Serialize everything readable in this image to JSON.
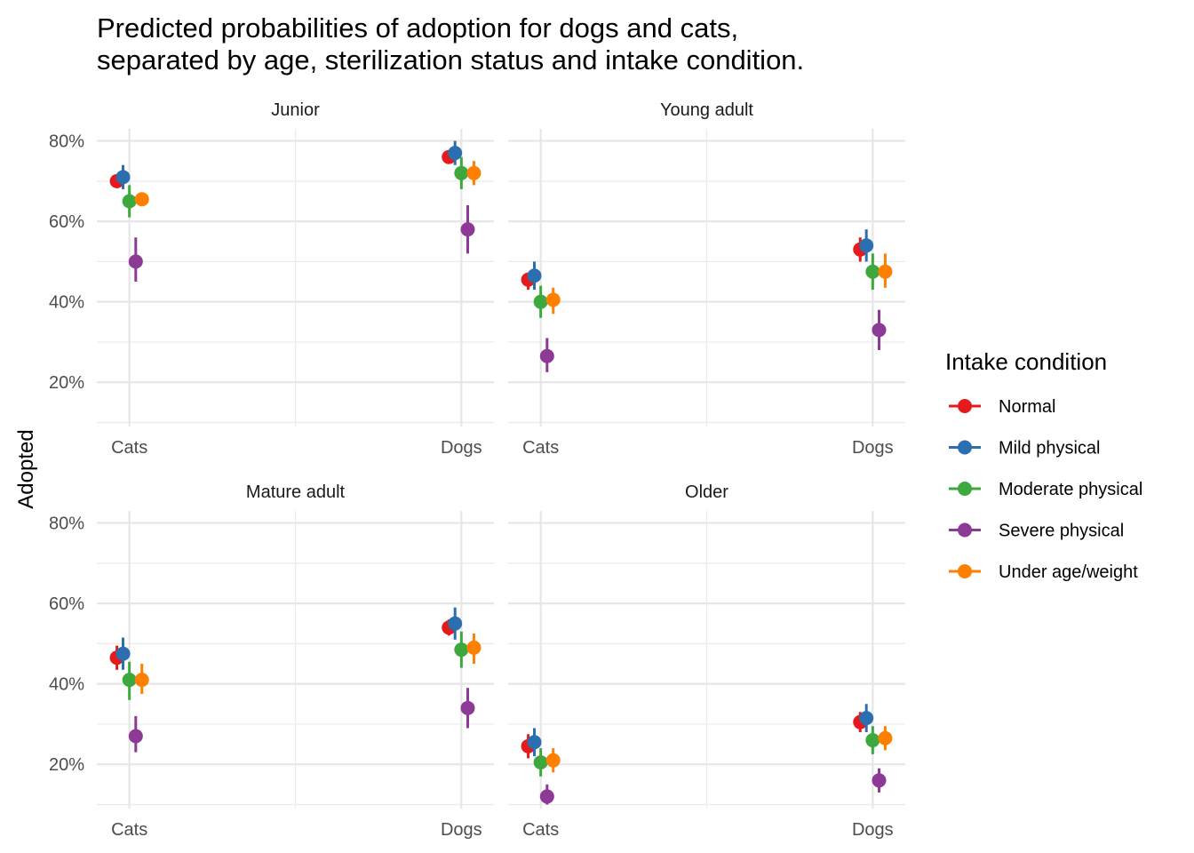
{
  "chart_data": {
    "type": "scatter",
    "title_lines": [
      "Predicted probabilities of adoption for dogs and cats,",
      "separated by age, sterilization status and intake condition."
    ],
    "xlabel": "",
    "ylabel": "Adopted",
    "categories": [
      "Cats",
      "Dogs"
    ],
    "y_ticks": [
      "20%",
      "40%",
      "60%",
      "80%"
    ],
    "ylim": [
      0.09,
      0.83
    ],
    "grid": true,
    "legend": {
      "title": "Intake condition",
      "placement": "right",
      "items": [
        "Normal",
        "Mild physical",
        "Moderate physical",
        "Severe physical",
        "Under age/weight"
      ]
    },
    "colors": {
      "Normal": "#e41a1c",
      "Mild physical": "#2b6fb0",
      "Moderate physical": "#3da83d",
      "Severe physical": "#8c3a96",
      "Under age/weight": "#ff7f00"
    },
    "panels": [
      {
        "name": "Junior",
        "series": [
          {
            "name": "Normal",
            "points": [
              {
                "x": "Cats",
                "y": 0.7,
                "lo": 0.69,
                "hi": 0.71
              },
              {
                "x": "Dogs",
                "y": 0.76,
                "lo": 0.75,
                "hi": 0.77
              }
            ]
          },
          {
            "name": "Mild physical",
            "points": [
              {
                "x": "Cats",
                "y": 0.71,
                "lo": 0.68,
                "hi": 0.74
              },
              {
                "x": "Dogs",
                "y": 0.77,
                "lo": 0.74,
                "hi": 0.8
              }
            ]
          },
          {
            "name": "Moderate physical",
            "points": [
              {
                "x": "Cats",
                "y": 0.65,
                "lo": 0.61,
                "hi": 0.69
              },
              {
                "x": "Dogs",
                "y": 0.72,
                "lo": 0.68,
                "hi": 0.76
              }
            ]
          },
          {
            "name": "Severe physical",
            "points": [
              {
                "x": "Cats",
                "y": 0.5,
                "lo": 0.45,
                "hi": 0.56
              },
              {
                "x": "Dogs",
                "y": 0.58,
                "lo": 0.52,
                "hi": 0.64
              }
            ]
          },
          {
            "name": "Under age/weight",
            "points": [
              {
                "x": "Cats",
                "y": 0.655,
                "lo": 0.64,
                "hi": 0.67
              },
              {
                "x": "Dogs",
                "y": 0.72,
                "lo": 0.69,
                "hi": 0.75
              }
            ]
          }
        ]
      },
      {
        "name": "Young adult",
        "series": [
          {
            "name": "Normal",
            "points": [
              {
                "x": "Cats",
                "y": 0.455,
                "lo": 0.43,
                "hi": 0.47
              },
              {
                "x": "Dogs",
                "y": 0.53,
                "lo": 0.5,
                "hi": 0.56
              }
            ]
          },
          {
            "name": "Mild physical",
            "points": [
              {
                "x": "Cats",
                "y": 0.465,
                "lo": 0.43,
                "hi": 0.5
              },
              {
                "x": "Dogs",
                "y": 0.54,
                "lo": 0.5,
                "hi": 0.58
              }
            ]
          },
          {
            "name": "Moderate physical",
            "points": [
              {
                "x": "Cats",
                "y": 0.4,
                "lo": 0.36,
                "hi": 0.44
              },
              {
                "x": "Dogs",
                "y": 0.475,
                "lo": 0.43,
                "hi": 0.52
              }
            ]
          },
          {
            "name": "Severe physical",
            "points": [
              {
                "x": "Cats",
                "y": 0.265,
                "lo": 0.225,
                "hi": 0.31
              },
              {
                "x": "Dogs",
                "y": 0.33,
                "lo": 0.28,
                "hi": 0.38
              }
            ]
          },
          {
            "name": "Under age/weight",
            "points": [
              {
                "x": "Cats",
                "y": 0.405,
                "lo": 0.37,
                "hi": 0.435
              },
              {
                "x": "Dogs",
                "y": 0.475,
                "lo": 0.435,
                "hi": 0.52
              }
            ]
          }
        ]
      },
      {
        "name": "Mature adult",
        "series": [
          {
            "name": "Normal",
            "points": [
              {
                "x": "Cats",
                "y": 0.465,
                "lo": 0.435,
                "hi": 0.495
              },
              {
                "x": "Dogs",
                "y": 0.54,
                "lo": 0.52,
                "hi": 0.56
              }
            ]
          },
          {
            "name": "Mild physical",
            "points": [
              {
                "x": "Cats",
                "y": 0.475,
                "lo": 0.435,
                "hi": 0.515
              },
              {
                "x": "Dogs",
                "y": 0.55,
                "lo": 0.51,
                "hi": 0.59
              }
            ]
          },
          {
            "name": "Moderate physical",
            "points": [
              {
                "x": "Cats",
                "y": 0.41,
                "lo": 0.36,
                "hi": 0.455
              },
              {
                "x": "Dogs",
                "y": 0.485,
                "lo": 0.44,
                "hi": 0.53
              }
            ]
          },
          {
            "name": "Severe physical",
            "points": [
              {
                "x": "Cats",
                "y": 0.27,
                "lo": 0.23,
                "hi": 0.32
              },
              {
                "x": "Dogs",
                "y": 0.34,
                "lo": 0.29,
                "hi": 0.39
              }
            ]
          },
          {
            "name": "Under age/weight",
            "points": [
              {
                "x": "Cats",
                "y": 0.41,
                "lo": 0.375,
                "hi": 0.45
              },
              {
                "x": "Dogs",
                "y": 0.49,
                "lo": 0.45,
                "hi": 0.525
              }
            ]
          }
        ]
      },
      {
        "name": "Older",
        "series": [
          {
            "name": "Normal",
            "points": [
              {
                "x": "Cats",
                "y": 0.245,
                "lo": 0.215,
                "hi": 0.275
              },
              {
                "x": "Dogs",
                "y": 0.305,
                "lo": 0.28,
                "hi": 0.33
              }
            ]
          },
          {
            "name": "Mild physical",
            "points": [
              {
                "x": "Cats",
                "y": 0.255,
                "lo": 0.22,
                "hi": 0.29
              },
              {
                "x": "Dogs",
                "y": 0.315,
                "lo": 0.28,
                "hi": 0.35
              }
            ]
          },
          {
            "name": "Moderate physical",
            "points": [
              {
                "x": "Cats",
                "y": 0.205,
                "lo": 0.17,
                "hi": 0.24
              },
              {
                "x": "Dogs",
                "y": 0.26,
                "lo": 0.225,
                "hi": 0.295
              }
            ]
          },
          {
            "name": "Severe physical",
            "points": [
              {
                "x": "Cats",
                "y": 0.12,
                "lo": 0.1,
                "hi": 0.15
              },
              {
                "x": "Dogs",
                "y": 0.16,
                "lo": 0.13,
                "hi": 0.19
              }
            ]
          },
          {
            "name": "Under age/weight",
            "points": [
              {
                "x": "Cats",
                "y": 0.21,
                "lo": 0.18,
                "hi": 0.24
              },
              {
                "x": "Dogs",
                "y": 0.265,
                "lo": 0.235,
                "hi": 0.295
              }
            ]
          }
        ]
      }
    ]
  }
}
